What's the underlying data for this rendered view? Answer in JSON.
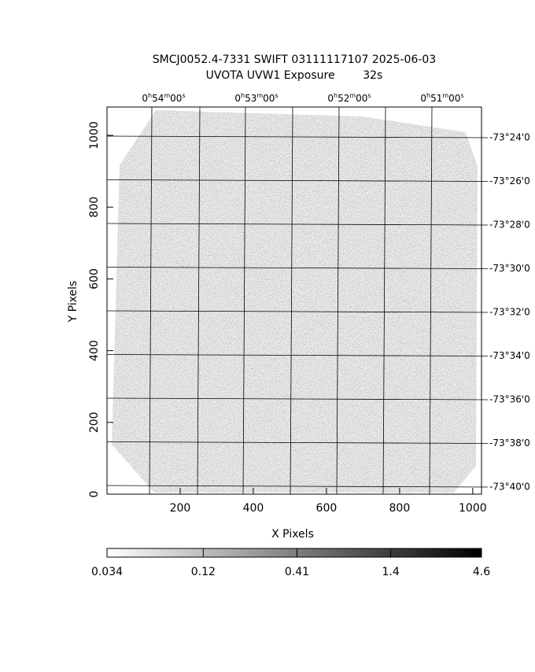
{
  "chart_data": {
    "type": "image",
    "title": "SMCJ0052.4-7331 SWIFT 03111117107 2025-06-03",
    "subtitle": "UVOTA UVW1 Exposure        32s",
    "x_label": "X Pixels",
    "y_label": "Y Pixels",
    "xlim": [
      0,
      1024
    ],
    "xticks": [
      200,
      400,
      600,
      800,
      1000
    ],
    "ylim": [
      0,
      1079
    ],
    "yticks": [
      0,
      200,
      400,
      600,
      800,
      1000
    ],
    "ra_labels": [
      [
        "0",
        "h",
        "54",
        "m",
        "00",
        "s"
      ],
      [
        "0",
        "h",
        "53",
        "m",
        "00",
        "s"
      ],
      [
        "0",
        "h",
        "52",
        "m",
        "00",
        "s"
      ],
      [
        "0",
        "h",
        "51",
        "m",
        "00",
        "s"
      ]
    ],
    "dec_labels": [
      "-73°24'0",
      "-73°26'0",
      "-73°28'0",
      "-73°30'0",
      "-73°32'0",
      "-73°34'0",
      "-73°36'0",
      "-73°38'0",
      "-73°40'0"
    ],
    "colorbar": {
      "log": true,
      "ticks": [
        0.034,
        0.12,
        0.41,
        1.4,
        4.6
      ]
    }
  }
}
